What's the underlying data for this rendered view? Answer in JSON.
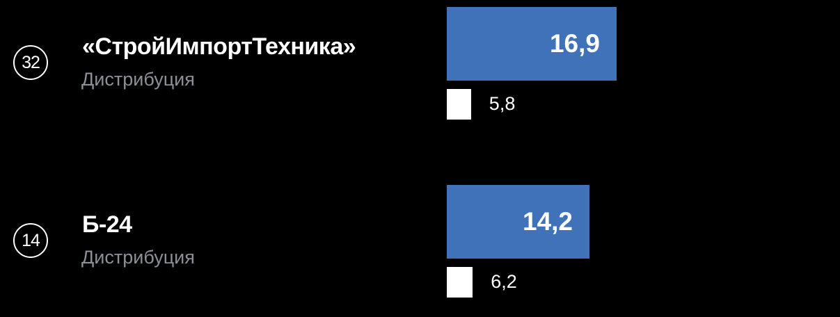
{
  "chart_data": {
    "type": "bar",
    "colors": {
      "primary": "#3f72b8",
      "secondary": "#ffffff",
      "background": "#000000"
    },
    "rows": [
      {
        "rank": "32",
        "name": "«СтройИмпортТехника»",
        "category": "Дистрибуция",
        "primary_value": 16.9,
        "primary_label": "16,9",
        "secondary_value": 5.8,
        "secondary_label": "5,8"
      },
      {
        "rank": "14",
        "name": "Б-24",
        "category": "Дистрибуция",
        "primary_value": 14.2,
        "primary_label": "14,2",
        "secondary_value": 6.2,
        "secondary_label": "6,2"
      }
    ]
  }
}
